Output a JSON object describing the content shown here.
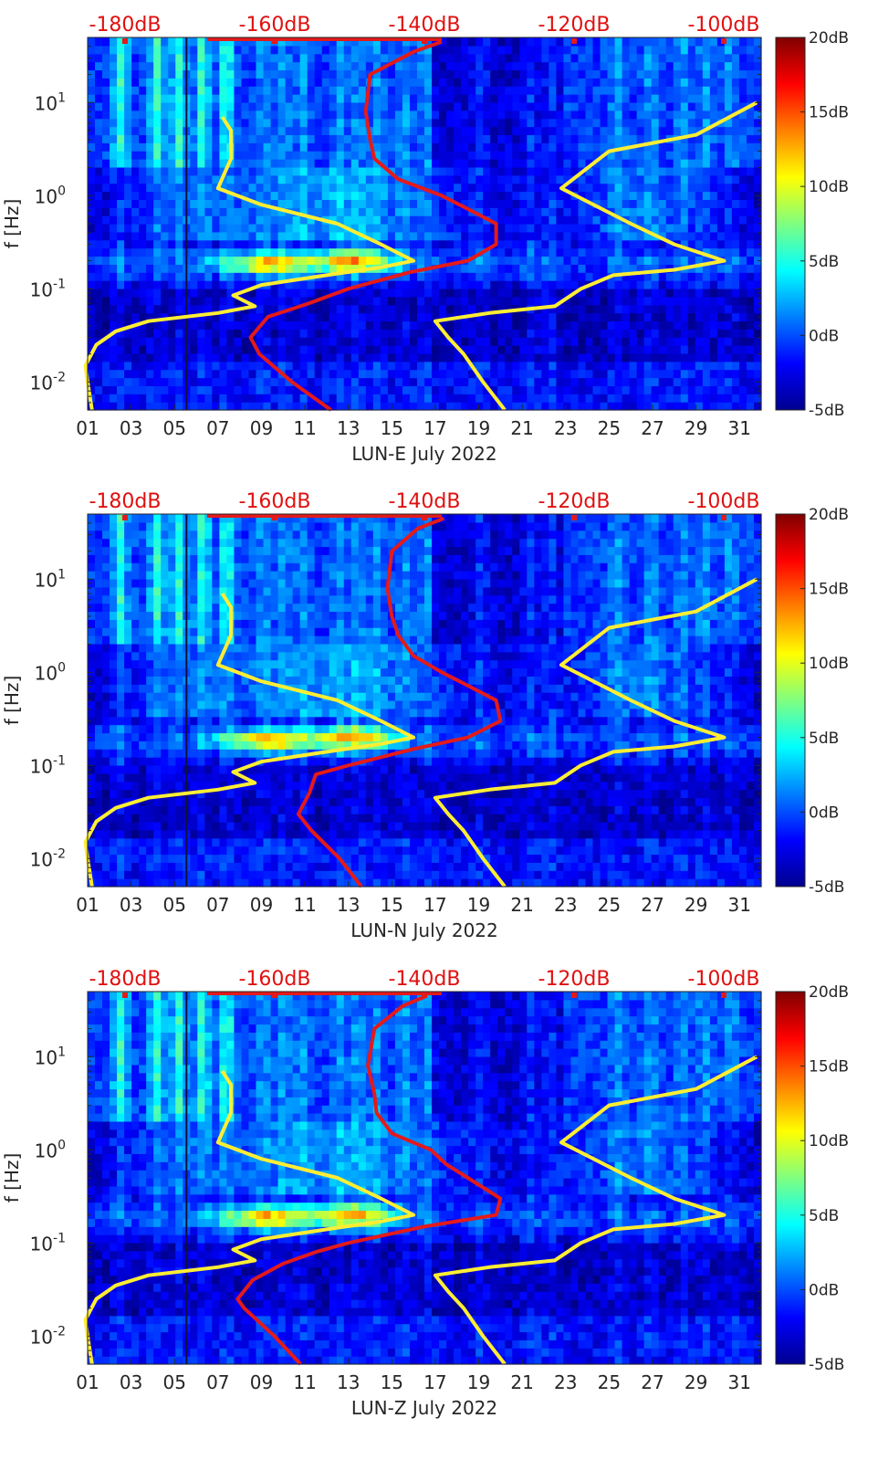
{
  "chart_data": [
    {
      "type": "heatmap",
      "title": "",
      "xlabel": "LUN-E July 2022",
      "ylabel": "f [Hz]",
      "x_ticks": [
        "01",
        "03",
        "05",
        "07",
        "09",
        "11",
        "13",
        "15",
        "17",
        "19",
        "21",
        "23",
        "25",
        "27",
        "29",
        "31"
      ],
      "x_range": [
        1,
        32
      ],
      "y_scale": "log",
      "y_range": [
        0.005,
        50
      ],
      "y_ticks": [
        {
          "base": "10",
          "exp": "-2",
          "value": 0.01
        },
        {
          "base": "10",
          "exp": "-1",
          "value": 0.1
        },
        {
          "base": "10",
          "exp": "0",
          "value": 1
        },
        {
          "base": "10",
          "exp": "1",
          "value": 10
        }
      ],
      "top_axis_labels": [
        "-180dB",
        "-160dB",
        "-140dB",
        "-120dB",
        "-100dB"
      ],
      "colorbar": {
        "min": -5,
        "max": 20,
        "ticks": [
          "20dB",
          "15dB",
          "10dB",
          "5dB",
          "0dB",
          "-5dB"
        ]
      },
      "red_curve": [
        [
          0.005,
          12.2
        ],
        [
          0.01,
          10.4
        ],
        [
          0.02,
          8.9
        ],
        [
          0.03,
          8.5
        ],
        [
          0.05,
          9.3
        ],
        [
          0.07,
          11.2
        ],
        [
          0.1,
          13.0
        ],
        [
          0.15,
          15.8
        ],
        [
          0.2,
          18.5
        ],
        [
          0.3,
          19.8
        ],
        [
          0.5,
          19.8
        ],
        [
          0.7,
          18.6
        ],
        [
          1,
          17.3
        ],
        [
          1.5,
          15.3
        ],
        [
          2.5,
          14.2
        ],
        [
          4,
          14.0
        ],
        [
          8,
          13.8
        ],
        [
          20,
          14.0
        ],
        [
          35,
          16.0
        ],
        [
          45,
          17.3
        ]
      ],
      "yellow_curve_left": [
        [
          0.005,
          1.2
        ],
        [
          0.01,
          1.0
        ],
        [
          0.015,
          0.9
        ],
        [
          0.025,
          1.4
        ],
        [
          0.035,
          2.3
        ],
        [
          0.045,
          3.8
        ],
        [
          0.055,
          7.0
        ],
        [
          0.065,
          8.7
        ],
        [
          0.085,
          7.7
        ],
        [
          0.11,
          9.0
        ],
        [
          0.14,
          12.0
        ],
        [
          0.17,
          14.5
        ],
        [
          0.2,
          16.0
        ],
        [
          0.3,
          14.5
        ],
        [
          0.5,
          12.5
        ],
        [
          0.8,
          9.0
        ],
        [
          1.2,
          7.0
        ],
        [
          2.5,
          7.6
        ],
        [
          5,
          7.6
        ],
        [
          7,
          7.2
        ]
      ],
      "yellow_curve_right": [
        [
          0.005,
          20.2
        ],
        [
          0.01,
          19.2
        ],
        [
          0.02,
          18.3
        ],
        [
          0.03,
          17.6
        ],
        [
          0.045,
          17.0
        ],
        [
          0.055,
          19.5
        ],
        [
          0.065,
          22.5
        ],
        [
          0.1,
          23.7
        ],
        [
          0.14,
          25.2
        ],
        [
          0.16,
          28.0
        ],
        [
          0.2,
          30.3
        ],
        [
          0.3,
          28.0
        ],
        [
          0.5,
          26.0
        ],
        [
          1.2,
          22.8
        ],
        [
          3,
          25.0
        ],
        [
          4.5,
          29.0
        ],
        [
          10,
          31.8
        ]
      ]
    },
    {
      "type": "heatmap",
      "title": "",
      "xlabel": "LUN-N July 2022",
      "ylabel": "f [Hz]",
      "x_ticks": [
        "01",
        "03",
        "05",
        "07",
        "09",
        "11",
        "13",
        "15",
        "17",
        "19",
        "21",
        "23",
        "25",
        "27",
        "29",
        "31"
      ],
      "x_range": [
        1,
        32
      ],
      "y_scale": "log",
      "y_range": [
        0.005,
        50
      ],
      "y_ticks": [
        {
          "base": "10",
          "exp": "-2",
          "value": 0.01
        },
        {
          "base": "10",
          "exp": "-1",
          "value": 0.1
        },
        {
          "base": "10",
          "exp": "0",
          "value": 1
        },
        {
          "base": "10",
          "exp": "1",
          "value": 10
        }
      ],
      "top_axis_labels": [
        "-180dB",
        "-160dB",
        "-140dB",
        "-120dB",
        "-100dB"
      ],
      "colorbar": {
        "min": -5,
        "max": 20,
        "ticks": [
          "20dB",
          "15dB",
          "10dB",
          "5dB",
          "0dB",
          "-5dB"
        ]
      },
      "red_curve": [
        [
          0.005,
          13.6
        ],
        [
          0.01,
          12.6
        ],
        [
          0.02,
          11.3
        ],
        [
          0.03,
          10.7
        ],
        [
          0.05,
          11.2
        ],
        [
          0.08,
          11.5
        ],
        [
          0.1,
          13.0
        ],
        [
          0.15,
          16.0
        ],
        [
          0.2,
          18.5
        ],
        [
          0.3,
          20.0
        ],
        [
          0.5,
          19.8
        ],
        [
          0.7,
          18.6
        ],
        [
          1,
          17.3
        ],
        [
          1.5,
          16.0
        ],
        [
          2.5,
          15.3
        ],
        [
          4,
          15.0
        ],
        [
          8,
          14.8
        ],
        [
          20,
          15.0
        ],
        [
          35,
          16.2
        ],
        [
          45,
          17.4
        ]
      ],
      "yellow_curve_left": [
        [
          0.005,
          1.2
        ],
        [
          0.01,
          1.0
        ],
        [
          0.015,
          0.9
        ],
        [
          0.025,
          1.4
        ],
        [
          0.035,
          2.3
        ],
        [
          0.045,
          3.8
        ],
        [
          0.055,
          7.0
        ],
        [
          0.065,
          8.7
        ],
        [
          0.085,
          7.7
        ],
        [
          0.11,
          9.0
        ],
        [
          0.14,
          12.0
        ],
        [
          0.17,
          14.5
        ],
        [
          0.2,
          16.0
        ],
        [
          0.3,
          14.5
        ],
        [
          0.5,
          12.5
        ],
        [
          0.8,
          9.0
        ],
        [
          1.2,
          7.0
        ],
        [
          2.5,
          7.6
        ],
        [
          5,
          7.6
        ],
        [
          7,
          7.2
        ]
      ],
      "yellow_curve_right": [
        [
          0.005,
          20.2
        ],
        [
          0.01,
          19.2
        ],
        [
          0.02,
          18.3
        ],
        [
          0.03,
          17.6
        ],
        [
          0.045,
          17.0
        ],
        [
          0.055,
          19.5
        ],
        [
          0.065,
          22.5
        ],
        [
          0.1,
          23.7
        ],
        [
          0.14,
          25.2
        ],
        [
          0.16,
          28.0
        ],
        [
          0.2,
          30.3
        ],
        [
          0.3,
          28.0
        ],
        [
          0.5,
          26.0
        ],
        [
          1.2,
          22.8
        ],
        [
          3,
          25.0
        ],
        [
          4.5,
          29.0
        ],
        [
          10,
          31.8
        ]
      ]
    },
    {
      "type": "heatmap",
      "title": "",
      "xlabel": "LUN-Z July 2022",
      "ylabel": "f [Hz]",
      "x_ticks": [
        "01",
        "03",
        "05",
        "07",
        "09",
        "11",
        "13",
        "15",
        "17",
        "19",
        "21",
        "23",
        "25",
        "27",
        "29",
        "31"
      ],
      "x_range": [
        1,
        32
      ],
      "y_scale": "log",
      "y_range": [
        0.005,
        50
      ],
      "y_ticks": [
        {
          "base": "10",
          "exp": "-2",
          "value": 0.01
        },
        {
          "base": "10",
          "exp": "-1",
          "value": 0.1
        },
        {
          "base": "10",
          "exp": "0",
          "value": 1
        },
        {
          "base": "10",
          "exp": "1",
          "value": 10
        }
      ],
      "top_axis_labels": [
        "-180dB",
        "-160dB",
        "-140dB",
        "-120dB",
        "-100dB"
      ],
      "colorbar": {
        "min": -5,
        "max": 20,
        "ticks": [
          "20dB",
          "15dB",
          "10dB",
          "5dB",
          "0dB",
          "-5dB"
        ]
      },
      "red_curve": [
        [
          0.005,
          10.8
        ],
        [
          0.01,
          9.6
        ],
        [
          0.02,
          8.2
        ],
        [
          0.025,
          7.9
        ],
        [
          0.04,
          8.6
        ],
        [
          0.06,
          10.0
        ],
        [
          0.08,
          11.5
        ],
        [
          0.1,
          13.0
        ],
        [
          0.15,
          16.5
        ],
        [
          0.2,
          19.8
        ],
        [
          0.3,
          20.0
        ],
        [
          0.5,
          18.5
        ],
        [
          0.7,
          17.5
        ],
        [
          1,
          16.8
        ],
        [
          1.5,
          15.0
        ],
        [
          2.5,
          14.3
        ],
        [
          4,
          14.2
        ],
        [
          8,
          13.9
        ],
        [
          20,
          14.2
        ],
        [
          35,
          15.5
        ],
        [
          45,
          16.6
        ]
      ],
      "yellow_curve_left": [
        [
          0.005,
          1.2
        ],
        [
          0.01,
          1.0
        ],
        [
          0.015,
          0.9
        ],
        [
          0.025,
          1.4
        ],
        [
          0.035,
          2.3
        ],
        [
          0.045,
          3.8
        ],
        [
          0.055,
          7.0
        ],
        [
          0.065,
          8.7
        ],
        [
          0.085,
          7.7
        ],
        [
          0.11,
          9.0
        ],
        [
          0.14,
          12.0
        ],
        [
          0.17,
          14.5
        ],
        [
          0.2,
          16.0
        ],
        [
          0.3,
          14.5
        ],
        [
          0.5,
          12.5
        ],
        [
          0.8,
          9.0
        ],
        [
          1.2,
          7.0
        ],
        [
          2.5,
          7.6
        ],
        [
          5,
          7.6
        ],
        [
          7,
          7.2
        ]
      ],
      "yellow_curve_right": [
        [
          0.005,
          20.2
        ],
        [
          0.01,
          19.2
        ],
        [
          0.02,
          18.3
        ],
        [
          0.03,
          17.6
        ],
        [
          0.045,
          17.0
        ],
        [
          0.055,
          19.5
        ],
        [
          0.065,
          22.5
        ],
        [
          0.1,
          23.7
        ],
        [
          0.14,
          25.2
        ],
        [
          0.16,
          28.0
        ],
        [
          0.2,
          30.3
        ],
        [
          0.3,
          28.0
        ],
        [
          0.5,
          26.0
        ],
        [
          1.2,
          22.8
        ],
        [
          3,
          25.0
        ],
        [
          4.5,
          29.0
        ],
        [
          10,
          31.8
        ]
      ]
    }
  ],
  "colors": {
    "red_curve": "#e41a1a",
    "yellow_curve": "#ffee33",
    "top_label": "#e01010",
    "background_low": "#0a2a9e"
  }
}
